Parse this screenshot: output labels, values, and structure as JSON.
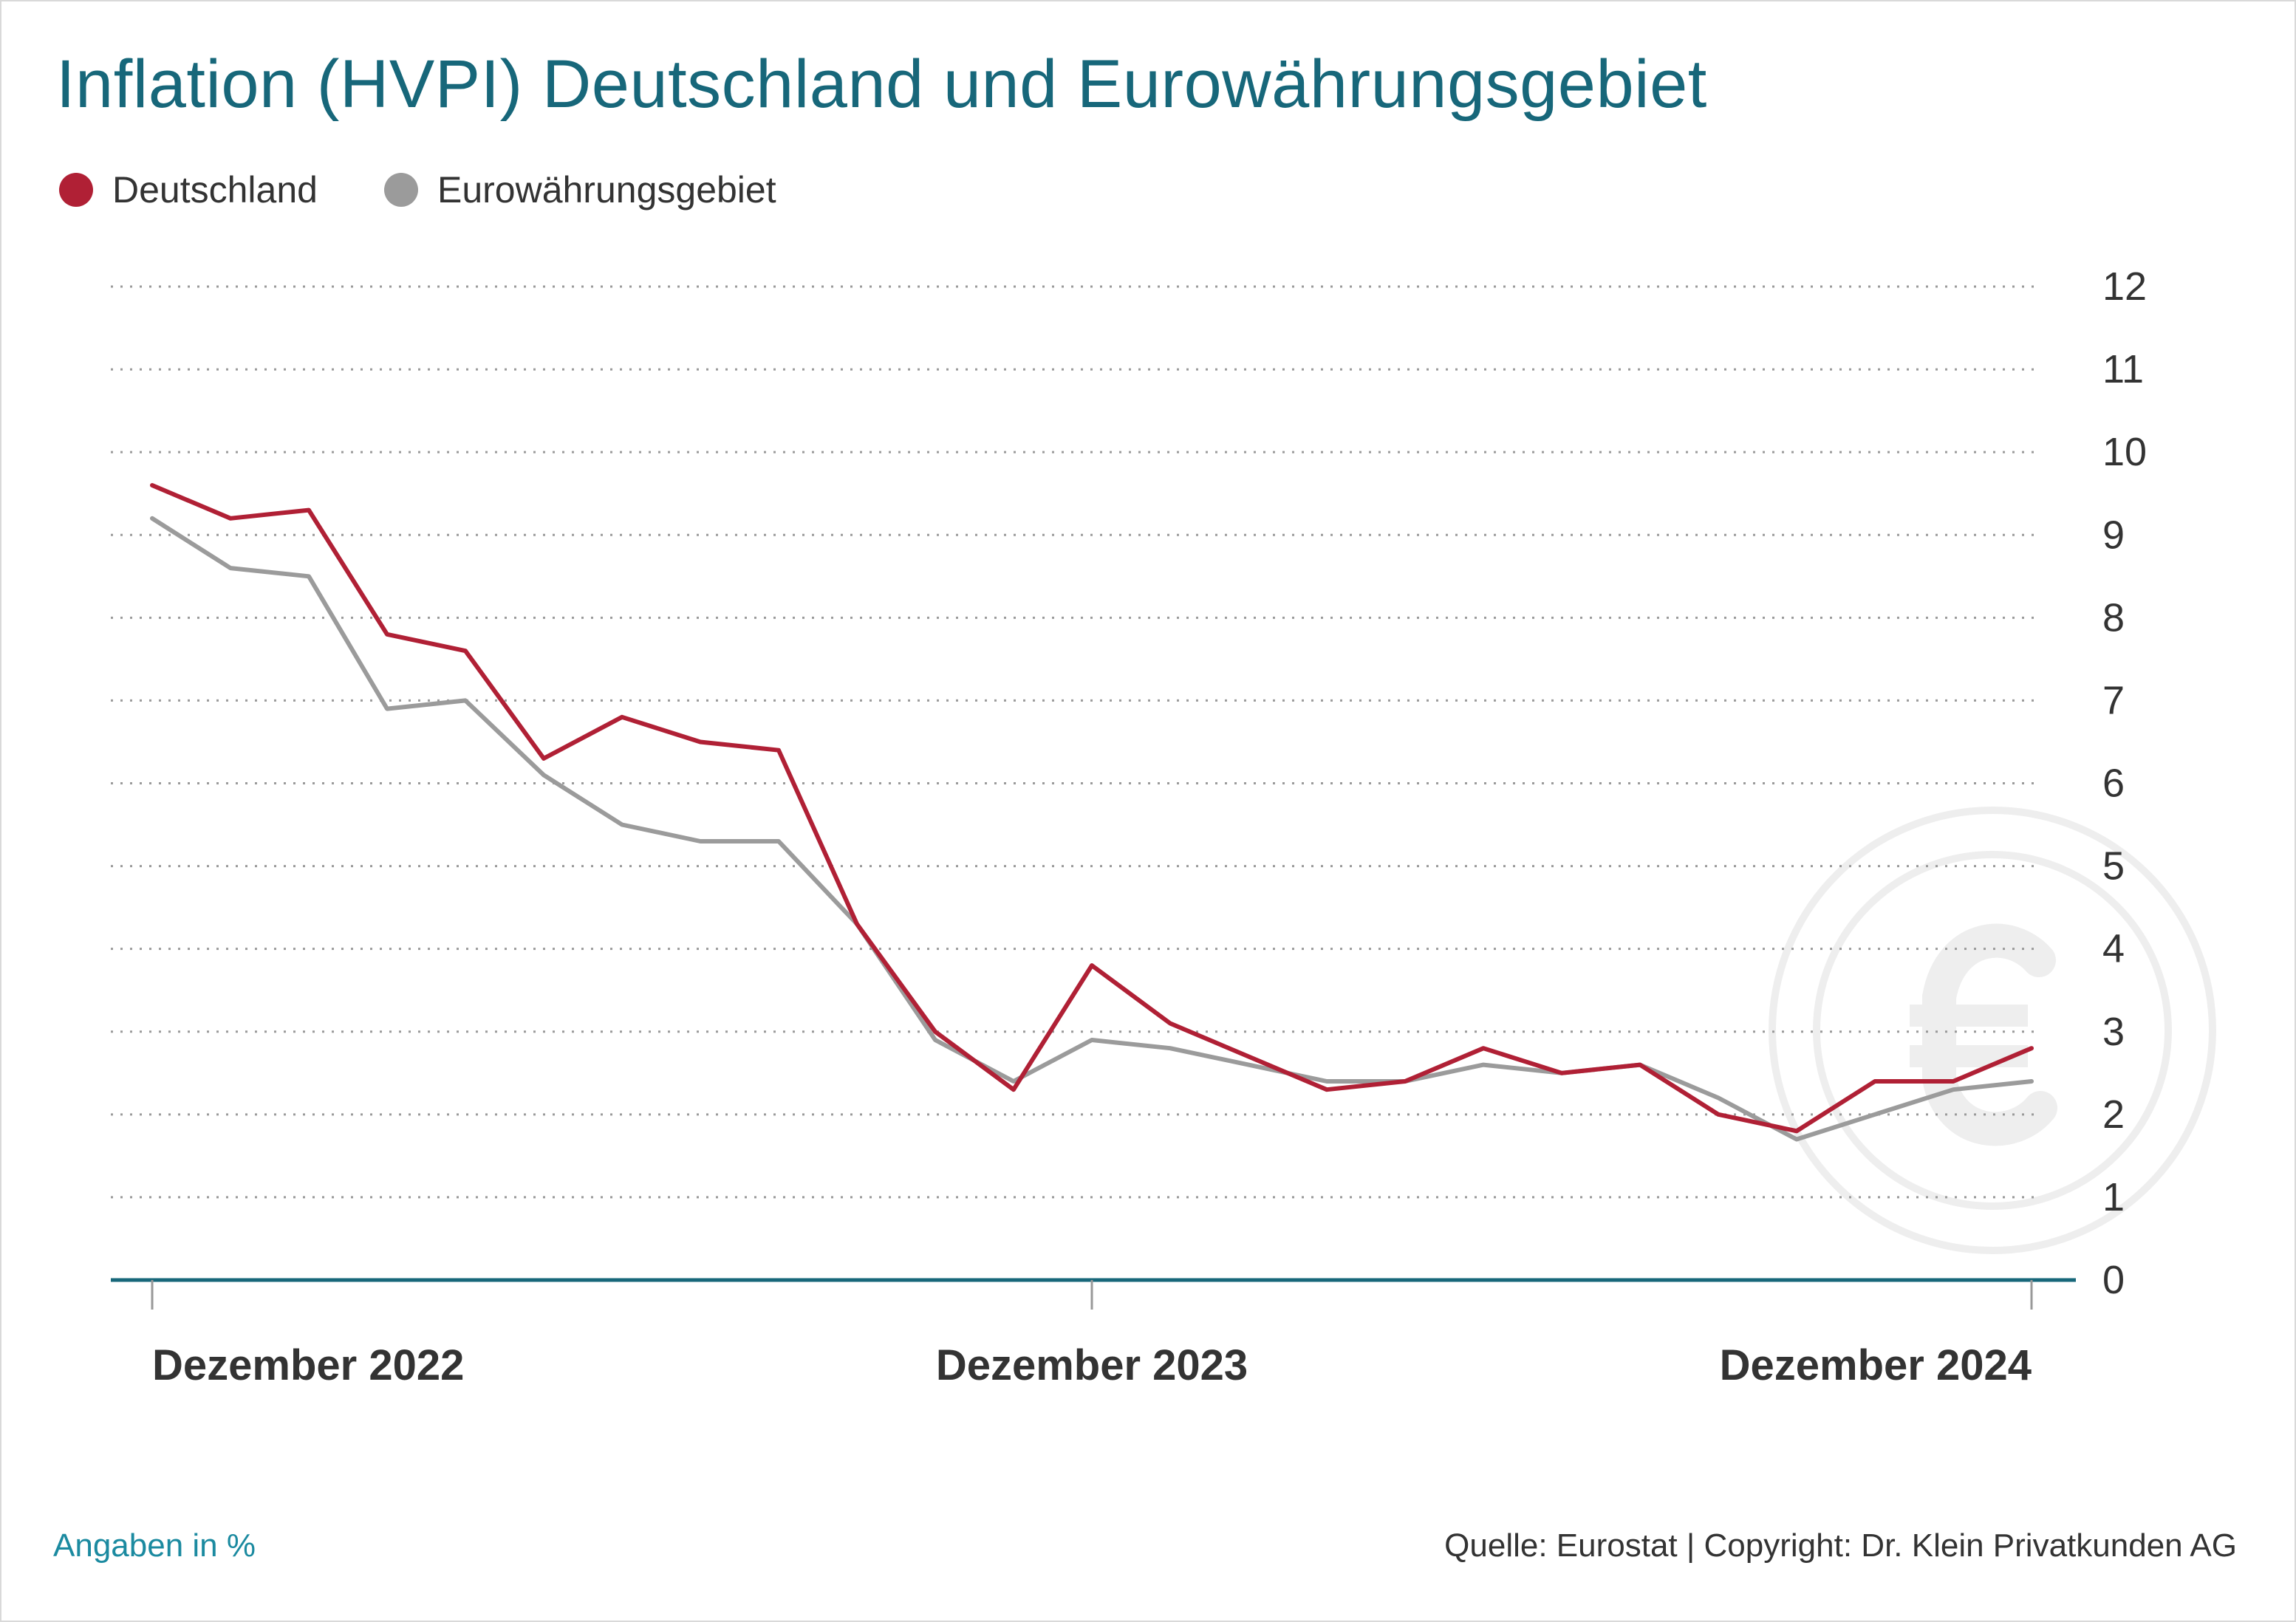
{
  "title": "Inflation (HVPI) Deutschland und Eurowährungsgebiet",
  "legend": [
    {
      "label": "Deutschland",
      "color": "#b02035"
    },
    {
      "label": "Eurowährungsgebiet",
      "color": "#9b9b9b"
    }
  ],
  "footer": {
    "unit_note": "Angaben in %",
    "source": "Quelle: Eurostat | Copyright: Dr. Klein Privatkunden AG"
  },
  "colors": {
    "title": "#17677a",
    "axis": "#17677a",
    "grid": "#9a9a9a",
    "watermark": "#eeeeee"
  },
  "watermark": {
    "icon": "euro-coin-icon"
  },
  "chart_data": {
    "type": "line",
    "x_labels": [
      "Dezember 2022",
      "Dezember 2023",
      "Dezember 2024"
    ],
    "x_label_index": [
      0,
      12,
      24
    ],
    "ylim": [
      0,
      12
    ],
    "y_ticks": [
      "0",
      "1",
      "2",
      "3",
      "4",
      "5",
      "6",
      "7",
      "8",
      "9",
      "10",
      "11",
      "12"
    ],
    "grid": true,
    "legend_position": "top-left",
    "series": [
      {
        "name": "Deutschland",
        "color": "#b02035",
        "values": [
          9.6,
          9.2,
          9.3,
          7.8,
          7.6,
          6.3,
          6.8,
          6.5,
          6.4,
          4.3,
          3.0,
          2.3,
          3.8,
          3.1,
          2.7,
          2.3,
          2.4,
          2.8,
          2.5,
          2.6,
          2.0,
          1.8,
          2.4,
          2.4,
          2.8
        ]
      },
      {
        "name": "Eurowährungsgebiet",
        "color": "#9b9b9b",
        "values": [
          9.2,
          8.6,
          8.5,
          6.9,
          7.0,
          6.1,
          5.5,
          5.3,
          5.3,
          4.3,
          2.9,
          2.4,
          2.9,
          2.8,
          2.6,
          2.4,
          2.4,
          2.6,
          2.5,
          2.6,
          2.2,
          1.7,
          2.0,
          2.3,
          2.4
        ]
      }
    ]
  }
}
